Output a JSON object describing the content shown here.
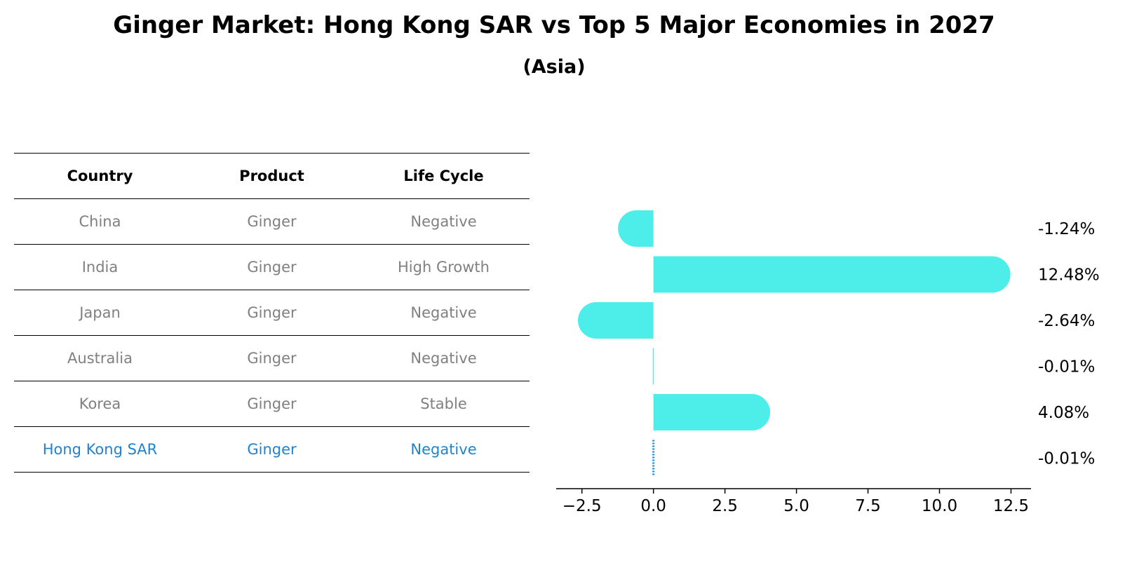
{
  "title": "Ginger Market: Hong Kong SAR vs Top 5 Major Economies in 2027",
  "subtitle": "(Asia)",
  "table": {
    "headers": [
      "Country",
      "Product",
      "Life Cycle"
    ],
    "rows": [
      [
        "China",
        "Ginger",
        "Negative"
      ],
      [
        "India",
        "Ginger",
        "High Growth"
      ],
      [
        "Japan",
        "Ginger",
        "Negative"
      ],
      [
        "Australia",
        "Ginger",
        "Negative"
      ],
      [
        "Korea",
        "Ginger",
        "Stable"
      ],
      [
        "Hong Kong SAR",
        "Ginger",
        "Negative"
      ]
    ]
  },
  "chart_data": {
    "type": "bar",
    "orientation": "horizontal",
    "categories": [
      "China",
      "India",
      "Japan",
      "Australia",
      "Korea",
      "Hong Kong SAR"
    ],
    "values": [
      -1.24,
      12.48,
      -2.64,
      -0.01,
      4.08,
      -0.01
    ],
    "value_labels": [
      "-1.24%",
      "12.48%",
      "-2.64%",
      "-0.01%",
      "4.08%",
      "-0.01%"
    ],
    "xlim": [
      -3.4,
      13.2
    ],
    "xticks": [
      -2.5,
      0.0,
      2.5,
      5.0,
      7.5,
      10.0,
      12.5
    ],
    "xtick_labels": [
      "−2.5",
      "0.0",
      "2.5",
      "5.0",
      "7.5",
      "10.0",
      "12.5"
    ],
    "bar_color": "#4deeea",
    "highlight_color": "#1f83d0",
    "highlight_category": "Hong Kong SAR"
  }
}
